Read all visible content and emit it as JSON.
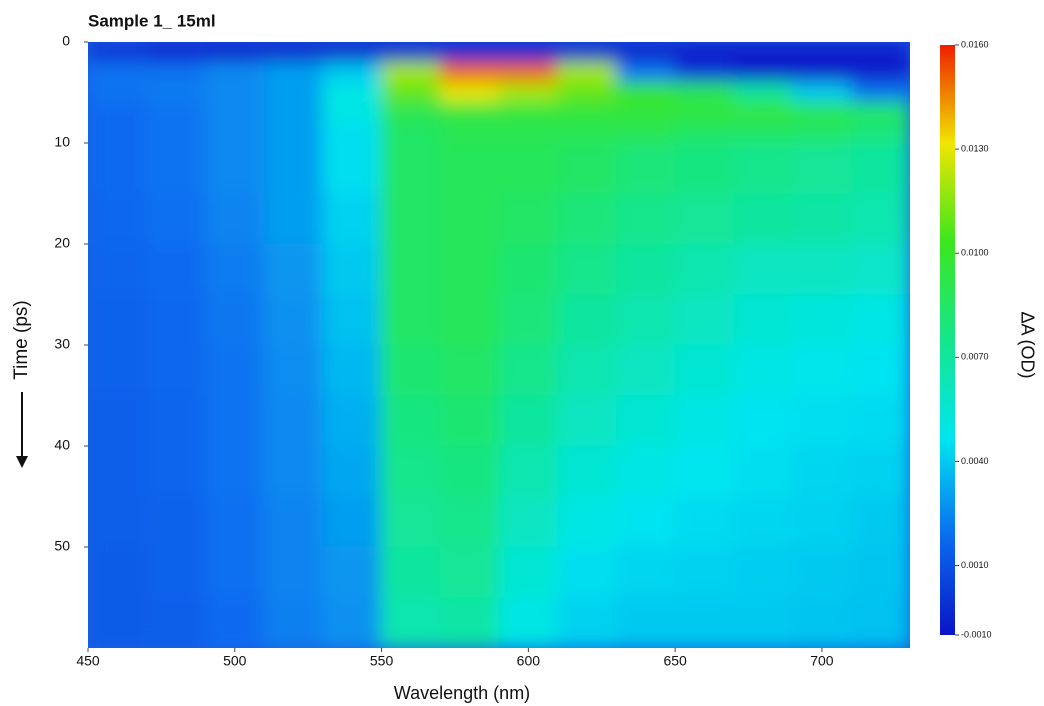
{
  "chart_data": {
    "type": "heatmap",
    "title": "Sample 1_ 15ml",
    "x_label": "Wavelength (nm)",
    "y_label": "Time (ps)",
    "colorbar_label": "ΔA (OD)",
    "x_bins": [
      450,
      470,
      490,
      510,
      530,
      550,
      570,
      590,
      610,
      630,
      650,
      670,
      690,
      710,
      730
    ],
    "y_bins": [
      0,
      2,
      4,
      6,
      8,
      10,
      15,
      20,
      25,
      30,
      35,
      40,
      45,
      50,
      55,
      60
    ],
    "values": [
      [
        0.0,
        -0.0005,
        -0.0008,
        -0.0008,
        -0.0008,
        -0.0008,
        -0.0008,
        -0.0008,
        -0.0008,
        -0.0008,
        -0.0008,
        -0.0008,
        -0.0008,
        -0.0008
      ],
      [
        0.002,
        0.002,
        0.0025,
        0.003,
        0.004,
        0.012,
        0.015,
        0.015,
        0.012,
        0.002,
        0.0,
        -0.0008,
        -0.0008,
        -0.0008
      ],
      [
        0.002,
        0.0022,
        0.0025,
        0.003,
        0.005,
        0.011,
        0.013,
        0.012,
        0.011,
        0.01,
        0.009,
        0.007,
        0.004,
        0.002
      ],
      [
        0.0018,
        0.002,
        0.0025,
        0.003,
        0.005,
        0.009,
        0.0095,
        0.0095,
        0.0095,
        0.0095,
        0.0095,
        0.0095,
        0.009,
        0.0085
      ],
      [
        0.0018,
        0.002,
        0.0025,
        0.003,
        0.0045,
        0.0085,
        0.009,
        0.009,
        0.009,
        0.009,
        0.0085,
        0.0085,
        0.0085,
        0.008
      ],
      [
        0.0018,
        0.002,
        0.0025,
        0.003,
        0.0045,
        0.0085,
        0.0088,
        0.0088,
        0.0085,
        0.008,
        0.0078,
        0.0075,
        0.0072,
        0.007
      ],
      [
        0.0017,
        0.0019,
        0.0024,
        0.003,
        0.0042,
        0.0085,
        0.0088,
        0.0085,
        0.008,
        0.0075,
        0.0072,
        0.007,
        0.0068,
        0.0065
      ],
      [
        0.0016,
        0.0018,
        0.0022,
        0.0028,
        0.004,
        0.0085,
        0.0088,
        0.0082,
        0.0075,
        0.007,
        0.0065,
        0.006,
        0.006,
        0.0058
      ],
      [
        0.0015,
        0.0017,
        0.0021,
        0.0027,
        0.0038,
        0.0085,
        0.0088,
        0.008,
        0.007,
        0.0065,
        0.006,
        0.0055,
        0.0052,
        0.005
      ],
      [
        0.0015,
        0.0017,
        0.002,
        0.0026,
        0.0036,
        0.0082,
        0.0085,
        0.0075,
        0.0065,
        0.006,
        0.0055,
        0.005,
        0.0048,
        0.0046
      ],
      [
        0.0014,
        0.0016,
        0.002,
        0.0025,
        0.0034,
        0.0078,
        0.0082,
        0.007,
        0.006,
        0.0055,
        0.005,
        0.0046,
        0.0045,
        0.0044
      ],
      [
        0.0014,
        0.0016,
        0.002,
        0.0025,
        0.0032,
        0.0075,
        0.0078,
        0.0065,
        0.0055,
        0.005,
        0.0047,
        0.0045,
        0.0043,
        0.0042
      ],
      [
        0.0014,
        0.0015,
        0.0019,
        0.0024,
        0.003,
        0.0072,
        0.0075,
        0.006,
        0.005,
        0.0046,
        0.0044,
        0.0043,
        0.0042,
        0.004
      ],
      [
        0.0013,
        0.0015,
        0.0019,
        0.0024,
        0.0028,
        0.007,
        0.0072,
        0.0055,
        0.0045,
        0.0043,
        0.0042,
        0.0041,
        0.004,
        0.0039
      ],
      [
        0.0013,
        0.0014,
        0.0018,
        0.0023,
        0.0027,
        0.0065,
        0.0068,
        0.005,
        0.0042,
        0.004,
        0.004,
        0.004,
        0.0039,
        0.0038
      ]
    ],
    "xlim": [
      450,
      730
    ],
    "xticks": [
      450,
      500,
      550,
      600,
      650,
      700
    ],
    "ylim": [
      0,
      60
    ],
    "y_inverted": true,
    "yticks": [
      0,
      10,
      20,
      30,
      40,
      50
    ],
    "clim": [
      -0.001,
      0.016
    ],
    "cticks": [
      {
        "value": -0.001,
        "label": "-0.0010"
      },
      {
        "value": 0.001,
        "label": "0.0010"
      },
      {
        "value": 0.004,
        "label": "0.0040"
      },
      {
        "value": 0.007,
        "label": "0.0070"
      },
      {
        "value": 0.01,
        "label": "0.0100"
      },
      {
        "value": 0.013,
        "label": "0.0130"
      },
      {
        "value": 0.016,
        "label": "0.0160"
      }
    ],
    "colormap": [
      "#0a14c8",
      "#0a6cf0",
      "#00e6f0",
      "#14e68c",
      "#3ce61e",
      "#f0e600",
      "#f01e00"
    ]
  }
}
